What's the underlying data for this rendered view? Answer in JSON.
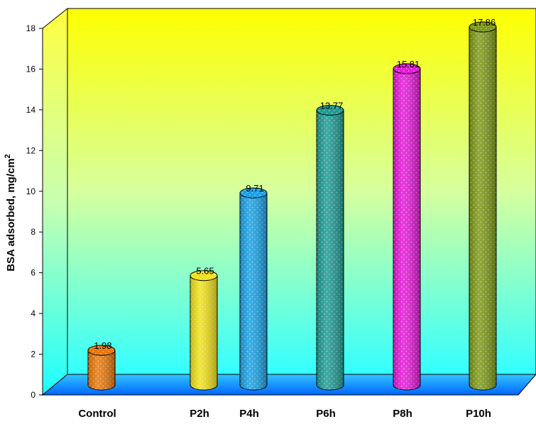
{
  "chart_data": {
    "type": "bar",
    "title": "",
    "xlabel": "",
    "ylabel": "BSA adsorbed, mg/cm",
    "ylabel_superscript": "2",
    "categories": [
      "Control",
      "P2h",
      "P4h",
      "P6h",
      "P8h",
      "P10h"
    ],
    "values": [
      1.98,
      5.65,
      9.71,
      13.77,
      15.81,
      17.86
    ],
    "value_labels": [
      "1.98",
      "5.65",
      "9.71",
      "13.77",
      "15.81",
      "17.86"
    ],
    "bar_colors": [
      "#e8780a",
      "#f2e21a",
      "#1aa3e6",
      "#1f9c93",
      "#e61ad9",
      "#7f9a18"
    ],
    "ylim": [
      0,
      18
    ],
    "yticks": [
      0,
      2,
      4,
      6,
      8,
      10,
      12,
      14,
      16,
      18
    ],
    "ytick_labels": [
      "0",
      "2",
      "4",
      "6",
      "8",
      "10",
      "12",
      "14",
      "16",
      "18"
    ],
    "bar_style": "3d-cylinder",
    "background": "gradient-yellow-to-cyan",
    "floor_color": "#1a8cff",
    "grid": false,
    "legend": "none"
  }
}
